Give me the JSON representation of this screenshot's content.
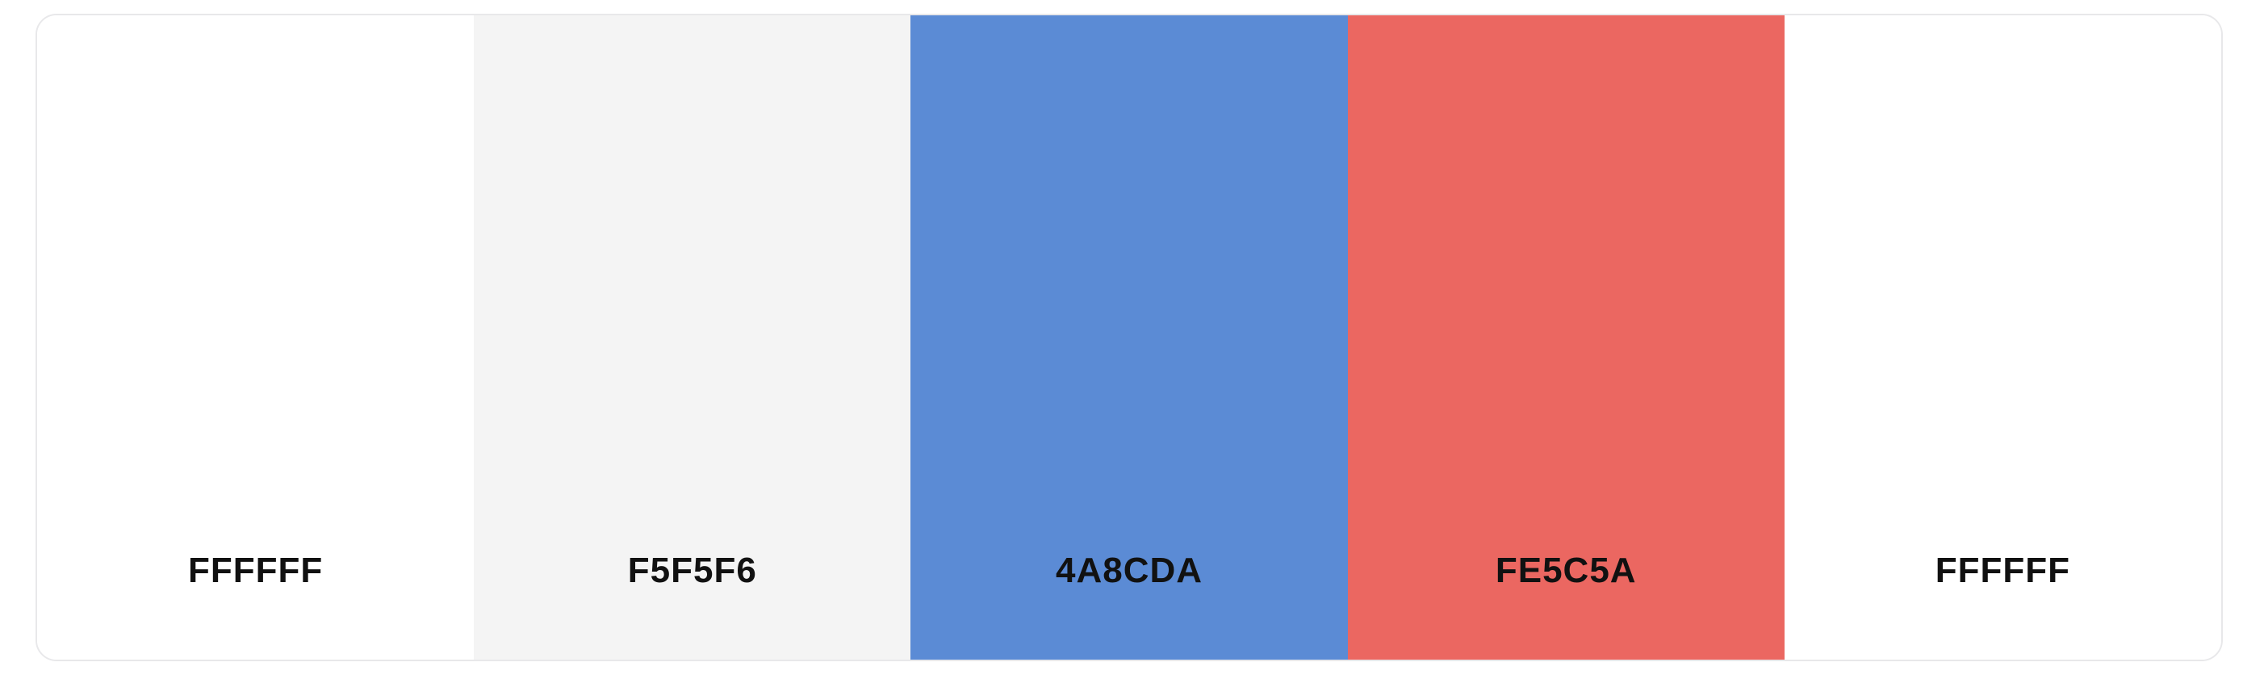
{
  "palette": {
    "swatches": [
      {
        "hex": "FFFFFF",
        "color": "#FFFFFF"
      },
      {
        "hex": "F5F5F6",
        "color": "#F4F4F4"
      },
      {
        "hex": "4A8CDA",
        "color": "#5B8BD5"
      },
      {
        "hex": "FE5C5A",
        "color": "#EB6761"
      },
      {
        "hex": "FFFFFF",
        "color": "#FFFFFF"
      }
    ]
  }
}
